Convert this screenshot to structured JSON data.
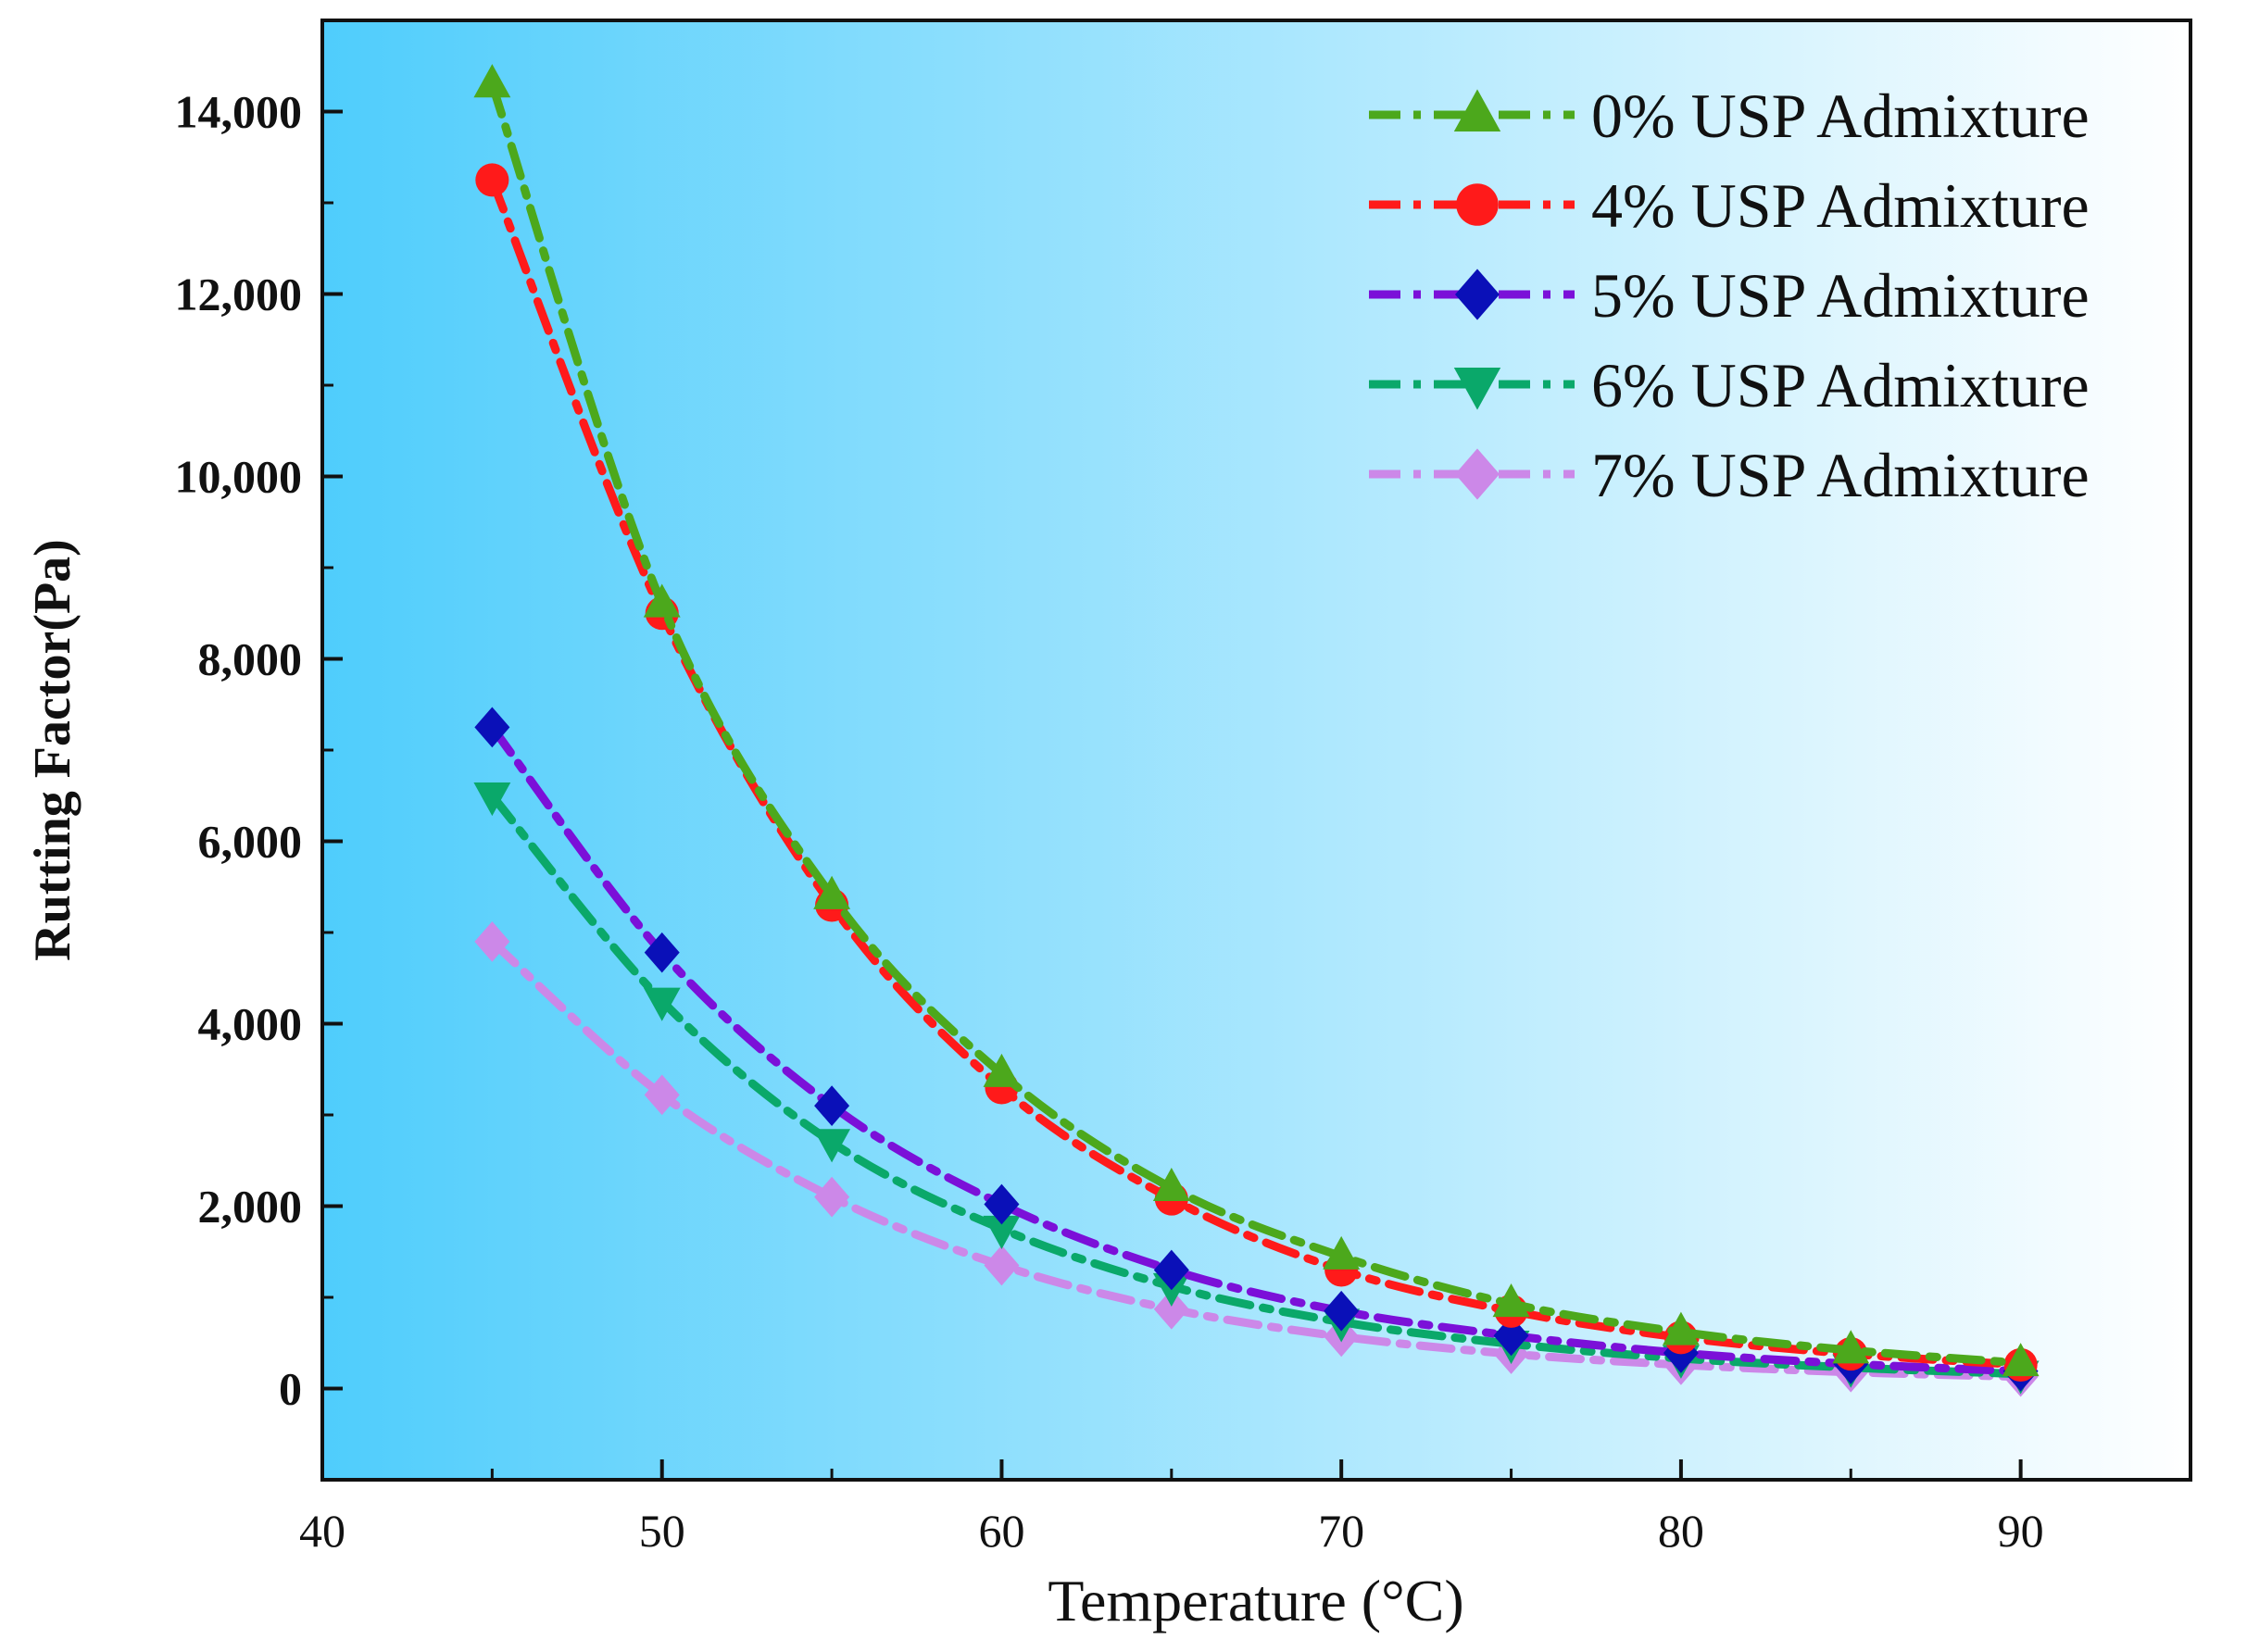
{
  "chart_data": {
    "type": "line",
    "title": "",
    "xlabel": "Temperature (°C)",
    "ylabel": "Rutting Factor(Pa)",
    "xlim": [
      40,
      95
    ],
    "ylim": [
      -1000,
      15000
    ],
    "x_ticks": [
      40,
      50,
      60,
      70,
      80,
      90
    ],
    "x_tick_labels": [
      "40",
      "50",
      "60",
      "70",
      "80",
      "90"
    ],
    "y_ticks": [
      0,
      2000,
      4000,
      6000,
      8000,
      10000,
      12000,
      14000
    ],
    "y_tick_labels": [
      "0",
      "2,000",
      "4,000",
      "6,000",
      "8,000",
      "10,000",
      "12,000",
      "14,000"
    ],
    "background_gradient": [
      "#4fcdfc",
      "#ffffff"
    ],
    "legend_position": "top-right",
    "x": [
      45,
      50,
      55,
      60,
      65,
      70,
      75,
      80,
      85,
      90
    ],
    "series": [
      {
        "name": "0% USP Admixture",
        "color": "#4ca81c",
        "marker": "triangle-up",
        "values": [
          14300,
          8600,
          5400,
          3450,
          2200,
          1450,
          930,
          620,
          420,
          280
        ]
      },
      {
        "name": "4% USP Admixture",
        "color": "#ff1a1a",
        "marker": "circle",
        "values": [
          13250,
          8500,
          5300,
          3300,
          2080,
          1300,
          850,
          560,
          380,
          260
        ]
      },
      {
        "name": "5% USP Admixture",
        "color": "#7b10d8",
        "marker_color": "#0a10b8",
        "marker": "diamond",
        "values": [
          7250,
          4780,
          3100,
          2020,
          1300,
          850,
          580,
          390,
          270,
          190
        ]
      },
      {
        "name": "6% USP Admixture",
        "color": "#0aa86a",
        "marker": "triangle-down",
        "values": [
          6500,
          4250,
          2700,
          1750,
          1120,
          730,
          490,
          330,
          230,
          160
        ]
      },
      {
        "name": "7% USP Admixture",
        "color": "#cc88e8",
        "marker": "diamond",
        "values": [
          4900,
          3220,
          2100,
          1350,
          870,
          570,
          380,
          260,
          180,
          130
        ]
      }
    ]
  }
}
